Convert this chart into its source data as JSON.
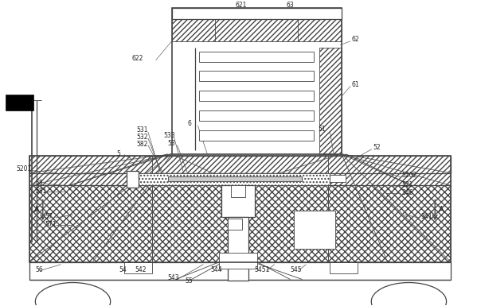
{
  "bg_color": "#ffffff",
  "lc": "#444444",
  "figsize": [
    5.99,
    3.85
  ],
  "dpi": 100,
  "font_size": 5.5,
  "font_color": "#222222"
}
